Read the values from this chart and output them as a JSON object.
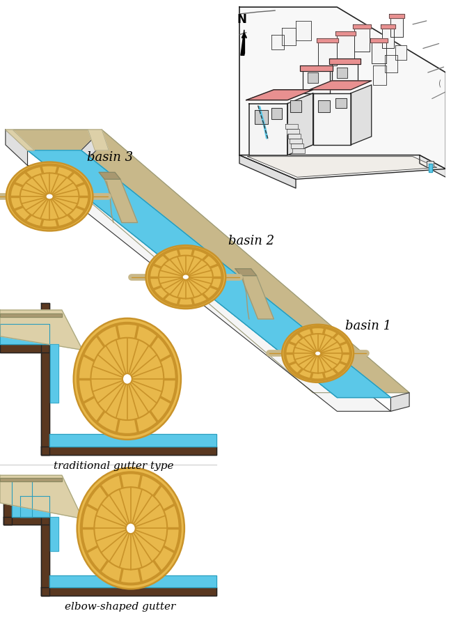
{
  "bg_color": "#ffffff",
  "blue_water": "#5bc8e8",
  "blue_dark": "#2a9dbd",
  "blue_light": "#a8dff0",
  "gold_wheel": "#e8b84b",
  "gold_dark": "#c9932a",
  "tan_color": "#c8b88a",
  "tan_dark": "#a89870",
  "tan_light": "#ddd0a8",
  "brown_wall": "#5a3820",
  "pink_roof": "#e89090",
  "wall_white": "#f5f5f5",
  "wall_gray": "#e0e0e0",
  "basin1_label": "basin 1",
  "basin2_label": "basin 2",
  "basin3_label": "basin 3",
  "trad_label": "traditional gutter type",
  "elbow_label": "elbow-shaped gutter"
}
